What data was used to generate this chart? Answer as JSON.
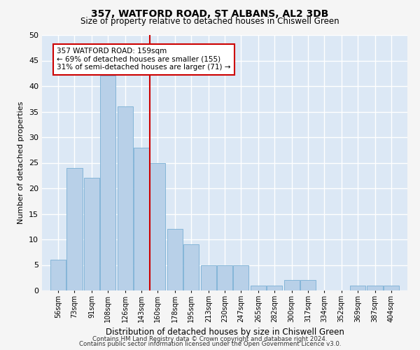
{
  "title": "357, WATFORD ROAD, ST ALBANS, AL2 3DB",
  "subtitle": "Size of property relative to detached houses in Chiswell Green",
  "xlabel": "Distribution of detached houses by size in Chiswell Green",
  "ylabel": "Number of detached properties",
  "bins": [
    56,
    73,
    91,
    108,
    126,
    143,
    160,
    178,
    195,
    213,
    230,
    247,
    265,
    282,
    300,
    317,
    334,
    352,
    369,
    387,
    404
  ],
  "values": [
    6,
    24,
    22,
    42,
    36,
    28,
    25,
    12,
    9,
    5,
    5,
    5,
    1,
    1,
    2,
    2,
    0,
    0,
    1,
    1,
    1
  ],
  "bar_color": "#b8d0e8",
  "bar_edge_color": "#7aafd4",
  "reference_line_x": 160,
  "reference_line_color": "#cc0000",
  "annotation_text": "357 WATFORD ROAD: 159sqm\n← 69% of detached houses are smaller (155)\n31% of semi-detached houses are larger (71) →",
  "annotation_box_color": "#ffffff",
  "annotation_box_edge_color": "#cc0000",
  "ylim": [
    0,
    50
  ],
  "background_color": "#dce8f5",
  "grid_color": "#ffffff",
  "fig_background_color": "#f5f5f5",
  "footer_line1": "Contains HM Land Registry data © Crown copyright and database right 2024.",
  "footer_line2": "Contains public sector information licensed under the Open Government Licence v3.0."
}
